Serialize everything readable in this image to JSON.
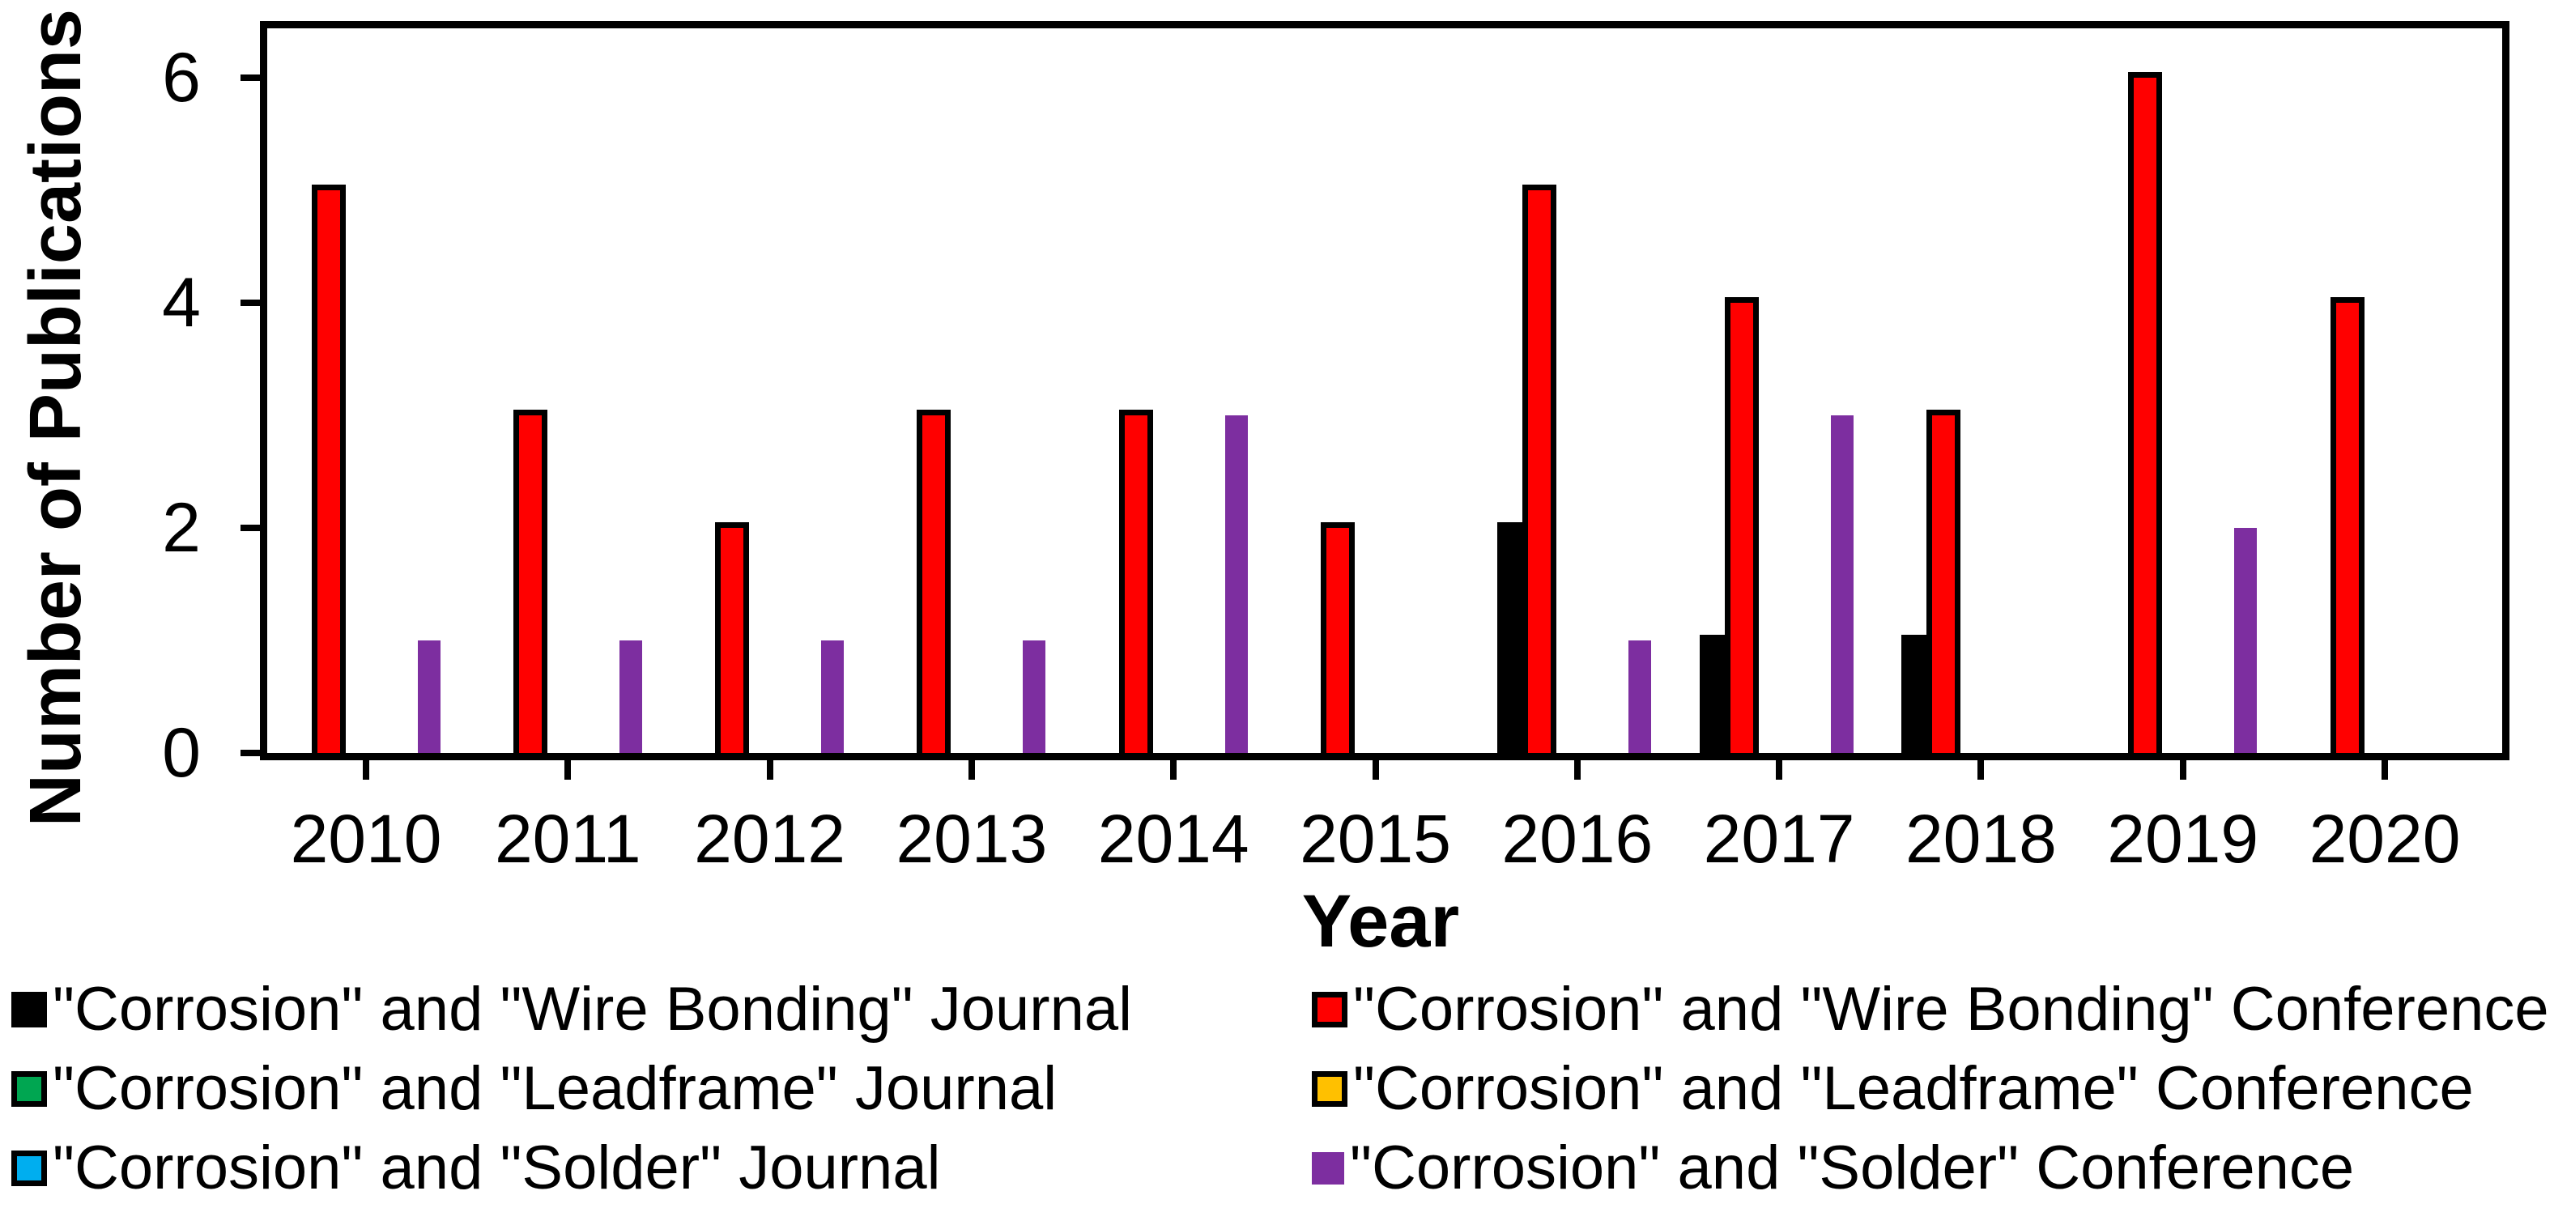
{
  "chart_data": {
    "type": "bar",
    "title": "",
    "xlabel": "Year",
    "ylabel": "Number of Publications",
    "ylim": [
      0,
      6.5
    ],
    "yticks": [
      0,
      2,
      4,
      6
    ],
    "grid": false,
    "legend_position": "bottom",
    "categories": [
      "2010",
      "2011",
      "2012",
      "2013",
      "2014",
      "2015",
      "2016",
      "2017",
      "2018",
      "2019",
      "2020"
    ],
    "series": [
      {
        "name": "\"Corrosion\" and \"Wire Bonding\" Journal",
        "color": "#000000",
        "outline": true,
        "values": [
          0,
          0,
          0,
          0,
          0,
          0,
          2,
          1,
          1,
          0,
          0
        ]
      },
      {
        "name": "\"Corrosion\" and \"Wire Bonding\" Conference",
        "color": "#FF0000",
        "outline": true,
        "values": [
          5,
          3,
          2,
          3,
          3,
          2,
          5,
          4,
          3,
          6,
          4
        ]
      },
      {
        "name": "\"Corrosion\" and \"Leadframe\" Journal",
        "color": "#00A651",
        "outline": true,
        "values": [
          0,
          0,
          0,
          0,
          0,
          0,
          0,
          0,
          0,
          0,
          0
        ]
      },
      {
        "name": "\"Corrosion\" and \"Leadframe\" Conference",
        "color": "#FFC000",
        "outline": true,
        "values": [
          0,
          0,
          0,
          0,
          0,
          0,
          0,
          0,
          0,
          0,
          0
        ]
      },
      {
        "name": "\"Corrosion\" and \"Solder\" Journal",
        "color": "#00AEEF",
        "outline": true,
        "values": [
          0,
          0,
          0,
          0,
          0,
          0,
          0,
          0,
          0,
          0,
          0
        ]
      },
      {
        "name": "\"Corrosion\" and \"Solder\" Conference",
        "color": "#7D2EA0",
        "outline": false,
        "values": [
          1,
          1,
          1,
          1,
          3,
          0,
          1,
          3,
          0,
          2,
          0
        ]
      }
    ]
  },
  "legend": {
    "column_order": [
      [
        0,
        2,
        4
      ],
      [
        1,
        3,
        5
      ]
    ]
  },
  "colors": {
    "frame": "#000000",
    "background": "#FFFFFF",
    "text": "#000000"
  }
}
